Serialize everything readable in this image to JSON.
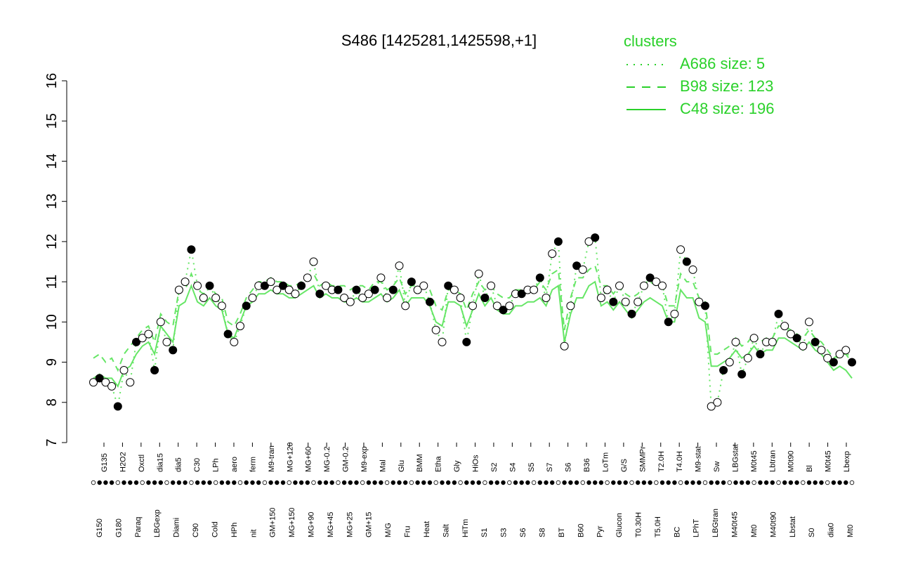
{
  "chart_data": {
    "type": "line",
    "title": "S486 [1425281,1425598,+1]",
    "xlabel": "",
    "ylabel": "",
    "ylim": [
      7,
      16
    ],
    "yticks": [
      7,
      8,
      9,
      10,
      11,
      12,
      13,
      14,
      15,
      16
    ],
    "grid": false,
    "legend": {
      "title": "clusters",
      "placement": "top-right",
      "entries": [
        {
          "label": "A686 size: 5",
          "style": "dotted"
        },
        {
          "label": "B98 size: 123",
          "style": "dashed"
        },
        {
          "label": "C48 size: 196",
          "style": "solid"
        }
      ]
    },
    "colors": {
      "lines": "#66e666",
      "legend": "#2ad12a",
      "axis": "#000000"
    },
    "tick_labels_top": [
      "G135",
      "H2O2",
      "Oxctl",
      "dia15",
      "dia5",
      "C30",
      "LPh",
      "aero",
      "ferm",
      "M9-tran",
      "MG+120",
      "MG+60",
      "MG-0.2",
      "GM-0.2",
      "M9-exp",
      "Mal",
      "Glu",
      "BMM",
      "Etha",
      "Gly",
      "HiOs",
      "S2",
      "S4",
      "S5",
      "S7",
      "S6",
      "B36",
      "LoTm",
      "G/S",
      "SMMPr",
      "T2.0H",
      "T4.0H",
      "M9-stat",
      "Sw",
      "LBGstat",
      "M0t45",
      "Lbtran",
      "M0t90",
      "Bl",
      "M0t45",
      "Lbexp"
    ],
    "tick_labels_bottom": [
      "G150",
      "G180",
      "Paraq",
      "LBGexp",
      "Diami",
      "C90",
      "Cold",
      "HPh",
      "nit",
      "GM+150",
      "MG+150",
      "MG+90",
      "MG+45",
      "MG+25",
      "GM+15",
      "M/G",
      "Fru",
      "Heat",
      "Salt",
      "HiTm",
      "S1",
      "S3",
      "S6",
      "S8",
      "BT",
      "B60",
      "Pyr",
      "Glucon",
      "T0.30H",
      "T5.0H",
      "BC",
      "LPhT",
      "LBGtran",
      "M40t45",
      "Mt0",
      "M40t90",
      "Lbstat",
      "S0",
      "dia0",
      "Mt0"
    ],
    "series": [
      {
        "values": [
          8.5,
          8.6,
          8.5,
          8.4,
          7.9,
          8.8,
          8.5,
          9.5,
          9.6,
          9.7,
          8.8,
          10.0,
          9.5,
          9.3,
          10.8,
          11.0,
          11.8,
          10.9,
          10.6,
          10.9,
          10.6,
          10.4,
          9.7,
          9.5,
          9.9,
          10.4,
          10.6,
          10.9,
          10.9,
          11.0,
          10.8,
          10.9,
          10.8,
          10.7,
          10.9,
          11.1,
          11.5,
          10.7,
          10.9,
          10.8,
          10.8,
          10.6,
          10.5,
          10.8,
          10.6,
          10.7,
          10.8,
          11.1,
          10.6,
          10.8,
          11.4,
          10.4,
          11.0,
          10.8,
          10.9,
          10.5,
          9.8,
          9.5,
          10.9,
          10.8,
          10.6,
          9.5,
          10.4,
          11.2,
          10.6,
          10.9,
          10.4,
          10.3,
          10.4,
          10.7,
          10.7,
          10.8,
          10.8,
          11.1,
          10.6,
          11.7,
          12.0,
          9.4,
          10.4,
          11.4,
          11.3,
          12.0,
          12.1,
          10.6,
          10.8,
          10.5,
          10.9,
          10.5,
          10.2,
          10.5,
          10.9,
          11.1,
          11.0,
          10.9,
          10.0,
          10.2,
          11.8,
          11.5,
          11.3,
          10.5,
          10.4,
          7.9,
          8.0,
          8.8,
          9.0,
          9.5,
          8.7,
          9.1,
          9.6,
          9.2,
          9.5,
          9.5,
          10.2,
          9.9,
          9.7,
          9.6,
          9.4,
          10.0,
          9.5,
          9.3,
          9.1,
          9.0,
          9.2,
          9.3,
          9.0
        ]
      },
      {
        "values": [
          9.1,
          9.2,
          9.0,
          9.1,
          8.8,
          9.2,
          9.4,
          9.6,
          9.8,
          9.9,
          9.5,
          10.2,
          10.0,
          9.9,
          10.8,
          10.8,
          11.2,
          10.8,
          10.7,
          10.9,
          10.7,
          10.6,
          10.0,
          9.9,
          10.2,
          10.6,
          10.8,
          11.0,
          11.0,
          11.1,
          11.0,
          11.0,
          10.9,
          10.9,
          11.0,
          11.1,
          11.2,
          10.9,
          11.0,
          10.9,
          10.9,
          10.9,
          10.8,
          10.9,
          10.9,
          10.8,
          11.0,
          11.0,
          10.8,
          10.9,
          11.1,
          10.7,
          10.9,
          10.9,
          10.9,
          10.8,
          10.4,
          10.3,
          10.8,
          10.8,
          10.7,
          10.3,
          10.7,
          11.0,
          10.8,
          10.9,
          10.7,
          10.6,
          10.6,
          10.8,
          10.8,
          10.8,
          10.8,
          11.0,
          10.8,
          11.2,
          11.3,
          9.8,
          10.6,
          11.1,
          11.1,
          11.3,
          11.4,
          10.9,
          10.9,
          10.7,
          10.9,
          10.7,
          10.6,
          10.7,
          10.9,
          11.0,
          10.9,
          10.9,
          10.4,
          10.4,
          11.2,
          11.0,
          11.0,
          10.6,
          10.5,
          9.2,
          9.2,
          9.3,
          9.4,
          9.6,
          9.4,
          9.5,
          9.7,
          9.5,
          9.6,
          9.6,
          9.9,
          9.9,
          9.8,
          9.7,
          9.6,
          9.8,
          9.6,
          9.5,
          9.3,
          9.1,
          9.2,
          9.2,
          9.0
        ]
      },
      {
        "values": [
          8.6,
          8.7,
          8.6,
          8.6,
          8.4,
          8.8,
          8.9,
          9.2,
          9.4,
          9.5,
          9.2,
          9.9,
          9.7,
          9.5,
          10.4,
          10.5,
          10.9,
          10.5,
          10.4,
          10.6,
          10.4,
          10.3,
          9.7,
          9.6,
          10.0,
          10.4,
          10.5,
          10.7,
          10.7,
          10.8,
          10.7,
          10.7,
          10.6,
          10.6,
          10.7,
          10.8,
          10.9,
          10.6,
          10.7,
          10.6,
          10.6,
          10.5,
          10.5,
          10.6,
          10.5,
          10.5,
          10.6,
          10.7,
          10.5,
          10.6,
          10.8,
          10.4,
          10.6,
          10.6,
          10.6,
          10.4,
          10.0,
          9.9,
          10.5,
          10.5,
          10.4,
          9.9,
          10.3,
          10.7,
          10.4,
          10.6,
          10.3,
          10.2,
          10.2,
          10.4,
          10.4,
          10.5,
          10.5,
          10.6,
          10.4,
          10.8,
          10.9,
          9.5,
          10.2,
          10.6,
          10.6,
          10.9,
          11.0,
          10.4,
          10.5,
          10.3,
          10.5,
          10.3,
          10.1,
          10.3,
          10.5,
          10.6,
          10.5,
          10.4,
          10.0,
          10.0,
          10.8,
          10.6,
          10.6,
          10.1,
          10.0,
          8.9,
          8.9,
          9.0,
          9.1,
          9.3,
          9.1,
          9.2,
          9.4,
          9.2,
          9.3,
          9.3,
          9.6,
          9.6,
          9.5,
          9.4,
          9.3,
          9.5,
          9.3,
          9.2,
          9.0,
          8.8,
          8.9,
          8.8,
          8.6
        ]
      }
    ]
  }
}
